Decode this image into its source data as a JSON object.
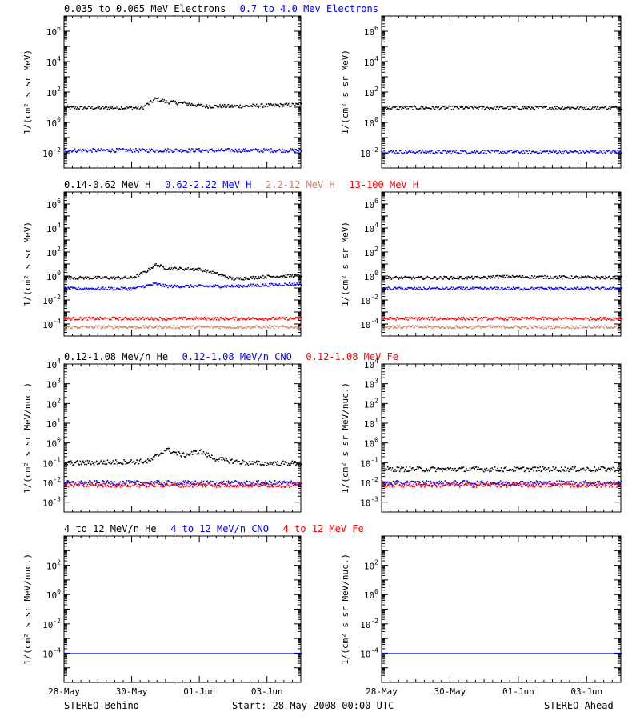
{
  "footer": {
    "left": "STEREO Behind",
    "center": "Start: 28-May-2008 00:00 UTC",
    "right": "STEREO Ahead"
  },
  "x_ticks": [
    "28-May",
    "30-May",
    "01-Jun",
    "03-Jun"
  ],
  "x_days": 7,
  "colors": {
    "black": "#000000",
    "blue": "#0000ff",
    "tan": "#c8826a",
    "red": "#ff0000",
    "gray": "#999999"
  },
  "chart_data": [
    {
      "type": "scatter",
      "row": 0,
      "legend": [
        {
          "name": "0.035 to 0.065 MeV Electrons",
          "color": "#000000"
        },
        {
          "name": "0.7 to 4.0 Mev Electrons",
          "color": "#0000ff"
        }
      ],
      "ylabel": "1/(cm² s sr MeV)",
      "ylim_log10": [
        -3,
        7
      ],
      "ytick_exponents": [
        -2,
        0,
        2,
        4,
        6
      ],
      "panels": {
        "behind": [
          {
            "color": "#000000",
            "x_days": [
              0,
              2.3,
              2.7,
              3.0,
              3.5,
              4.2,
              5.0,
              7
            ],
            "log10_y": [
              1.0,
              1.0,
              1.6,
              1.4,
              1.3,
              1.1,
              1.1,
              1.2
            ]
          },
          {
            "color": "#0000ff",
            "x_days": [
              0,
              7
            ],
            "log10_y": [
              -1.8,
              -1.8
            ]
          }
        ],
        "ahead": [
          {
            "color": "#000000",
            "x_days": [
              0,
              7
            ],
            "log10_y": [
              1.0,
              1.0
            ]
          },
          {
            "color": "#0000ff",
            "x_days": [
              0,
              7
            ],
            "log10_y": [
              -1.9,
              -1.9
            ]
          }
        ]
      }
    },
    {
      "type": "scatter",
      "row": 1,
      "legend": [
        {
          "name": "0.14-0.62 MeV H",
          "color": "#000000"
        },
        {
          "name": "0.62-2.22 MeV H",
          "color": "#0000ff"
        },
        {
          "name": "2.2-12 MeV H",
          "color": "#c8826a"
        },
        {
          "name": "13-100 MeV H",
          "color": "#ff0000"
        }
      ],
      "ylabel": "1/(cm² s sr MeV)",
      "ylim_log10": [
        -5,
        7
      ],
      "ytick_exponents": [
        -4,
        -2,
        0,
        2,
        4,
        6
      ],
      "panels": {
        "behind": [
          {
            "color": "#000000",
            "x_days": [
              0,
              2.0,
              2.4,
              2.7,
              3.0,
              4.0,
              4.3,
              5.0,
              6.0,
              7
            ],
            "log10_y": [
              -0.1,
              -0.1,
              0.4,
              1.0,
              0.7,
              0.6,
              0.4,
              -0.2,
              0.0,
              0.1
            ]
          },
          {
            "color": "#0000ff",
            "x_days": [
              0,
              2.0,
              2.7,
              3.0,
              5.0,
              7
            ],
            "log10_y": [
              -1.0,
              -1.0,
              -0.6,
              -0.8,
              -0.8,
              -0.6
            ]
          },
          {
            "color": "#ff0000",
            "x_days": [
              0,
              7
            ],
            "log10_y": [
              -3.5,
              -3.5
            ]
          },
          {
            "color": "#c8826a",
            "x_days": [
              0,
              7
            ],
            "log10_y": [
              -4.2,
              -4.2
            ]
          }
        ],
        "ahead": [
          {
            "color": "#000000",
            "x_days": [
              0,
              3.0,
              3.3,
              7
            ],
            "log10_y": [
              -0.1,
              -0.1,
              0.0,
              -0.1
            ]
          },
          {
            "color": "#0000ff",
            "x_days": [
              0,
              7
            ],
            "log10_y": [
              -1.0,
              -1.0
            ]
          },
          {
            "color": "#ff0000",
            "x_days": [
              0,
              7
            ],
            "log10_y": [
              -3.5,
              -3.5
            ]
          },
          {
            "color": "#c8826a",
            "x_days": [
              0,
              7
            ],
            "log10_y": [
              -4.2,
              -4.2
            ]
          }
        ]
      }
    },
    {
      "type": "scatter",
      "row": 2,
      "legend": [
        {
          "name": "0.12-1.08 MeV/n He",
          "color": "#000000"
        },
        {
          "name": "0.12-1.08 MeV/n CNO",
          "color": "#0000ff"
        },
        {
          "name": "0.12-1.08 MeV Fe",
          "color": "#ff0000"
        }
      ],
      "ylabel": "1/(cm² s sr MeV/nuc.)",
      "ylim_log10": [
        -3.5,
        4
      ],
      "ytick_exponents": [
        -3,
        -2,
        -1,
        0,
        1,
        2,
        3,
        4
      ],
      "panels": {
        "behind": [
          {
            "color": "#000000",
            "x_days": [
              0,
              2.5,
              3.0,
              3.5,
              4.0,
              4.5,
              5.5,
              7
            ],
            "log10_y": [
              -1.0,
              -0.9,
              -0.3,
              -0.6,
              -0.4,
              -0.8,
              -1.0,
              -1.0
            ]
          },
          {
            "color": "#0000ff",
            "x_days": [
              0,
              7
            ],
            "log10_y": [
              -2.0,
              -2.0
            ]
          },
          {
            "color": "#ff0000",
            "x_days": [
              0,
              7
            ],
            "log10_y": [
              -2.1,
              -2.1
            ]
          }
        ],
        "ahead": [
          {
            "color": "#000000",
            "x_days": [
              0,
              7
            ],
            "log10_y": [
              -1.3,
              -1.3
            ]
          },
          {
            "color": "#0000ff",
            "x_days": [
              0,
              7
            ],
            "log10_y": [
              -2.0,
              -2.0
            ]
          },
          {
            "color": "#ff0000",
            "x_days": [
              0,
              7
            ],
            "log10_y": [
              -2.1,
              -2.1
            ]
          }
        ]
      }
    },
    {
      "type": "scatter",
      "row": 3,
      "legend": [
        {
          "name": "4 to 12 MeV/n He",
          "color": "#000000"
        },
        {
          "name": "4 to 12 MeV/n CNO",
          "color": "#0000ff"
        },
        {
          "name": "4 to 12 MeV Fe",
          "color": "#ff0000"
        }
      ],
      "ylabel": "1/(cm² s sr MeV/nuc.)",
      "ylim_log10": [
        -6,
        4
      ],
      "ytick_exponents": [
        -4,
        -2,
        0,
        2
      ],
      "panels": {
        "behind": [
          {
            "color": "#0000ff",
            "x_days": [
              0,
              7
            ],
            "log10_y": [
              -4.0,
              -4.0
            ]
          }
        ],
        "ahead": [
          {
            "color": "#0000ff",
            "x_days": [
              0,
              7
            ],
            "log10_y": [
              -4.0,
              -4.0
            ]
          }
        ]
      }
    }
  ]
}
